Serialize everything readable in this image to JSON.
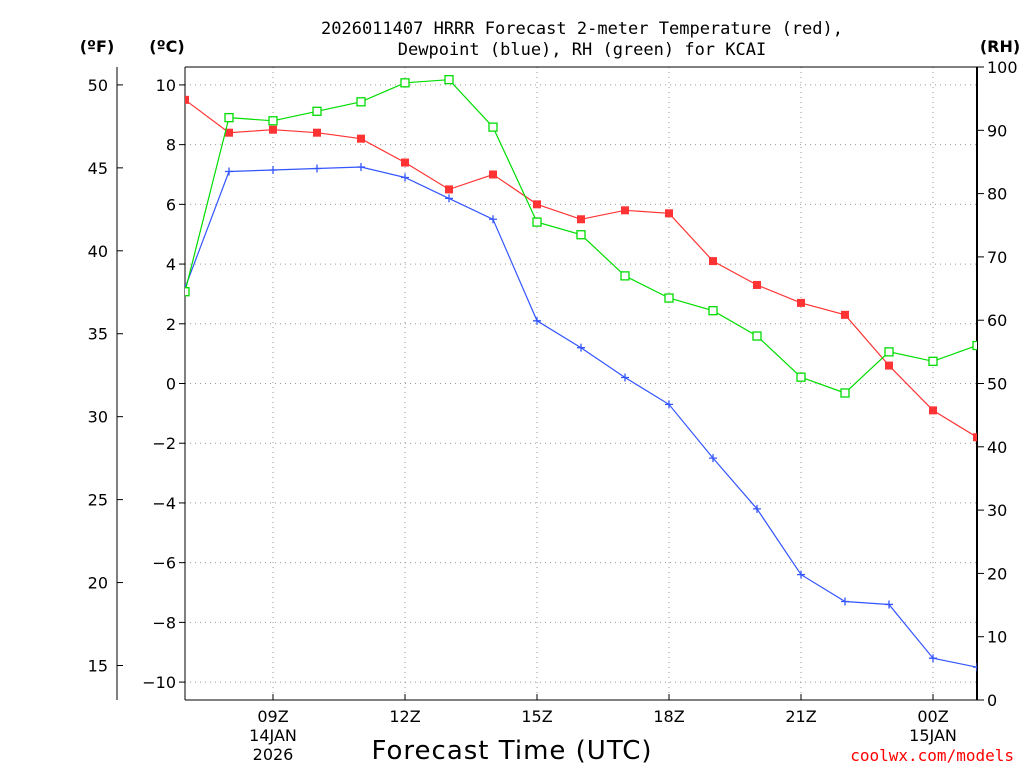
{
  "chart_data": {
    "type": "line",
    "title_lines": [
      "2026011407 HRRR Forecast 2-meter Temperature (red),",
      "Dewpoint (blue), RH (green) for KCAI"
    ],
    "xlabel": "Forecast Time (UTC)",
    "credit": "coolwx.com/models",
    "units": {
      "fahrenheit": "(ºF)",
      "celsius": "(ºC)",
      "rh": "(RH)"
    },
    "x_range": [
      7,
      25
    ],
    "celsius_range": [
      -10.6,
      10.6
    ],
    "fahrenheit_range": [
      12.92,
      51.08
    ],
    "rh_range": [
      0,
      100
    ],
    "x_ticks": [
      {
        "x": 9,
        "label": "09Z",
        "sub1": "14JAN",
        "sub2": "2026"
      },
      {
        "x": 12,
        "label": "12Z",
        "sub1": "",
        "sub2": ""
      },
      {
        "x": 15,
        "label": "15Z",
        "sub1": "",
        "sub2": ""
      },
      {
        "x": 18,
        "label": "18Z",
        "sub1": "",
        "sub2": ""
      },
      {
        "x": 21,
        "label": "21Z",
        "sub1": "",
        "sub2": ""
      },
      {
        "x": 24,
        "label": "00Z",
        "sub1": "15JAN",
        "sub2": ""
      }
    ],
    "celsius_ticks": [
      {
        "value": 10,
        "label": "10"
      },
      {
        "value": 8,
        "label": "8"
      },
      {
        "value": 6,
        "label": "6"
      },
      {
        "value": 4,
        "label": "4"
      },
      {
        "value": 2,
        "label": "2"
      },
      {
        "value": 0,
        "label": "0"
      },
      {
        "value": -2,
        "label": "−2"
      },
      {
        "value": -4,
        "label": "−4"
      },
      {
        "value": -6,
        "label": "−6"
      },
      {
        "value": -8,
        "label": "−8"
      },
      {
        "value": -10,
        "label": "−10"
      }
    ],
    "fahrenheit_ticks": [
      {
        "value": 50,
        "label": "50"
      },
      {
        "value": 45,
        "label": "45"
      },
      {
        "value": 40,
        "label": "40"
      },
      {
        "value": 35,
        "label": "35"
      },
      {
        "value": 30,
        "label": "30"
      },
      {
        "value": 25,
        "label": "25"
      },
      {
        "value": 20,
        "label": "20"
      },
      {
        "value": 15,
        "label": "15"
      }
    ],
    "rh_ticks": [
      {
        "value": 100,
        "label": "100"
      },
      {
        "value": 90,
        "label": "90"
      },
      {
        "value": 80,
        "label": "80"
      },
      {
        "value": 70,
        "label": "70"
      },
      {
        "value": 60,
        "label": "60"
      },
      {
        "value": 50,
        "label": "50"
      },
      {
        "value": 40,
        "label": "40"
      },
      {
        "value": 30,
        "label": "30"
      },
      {
        "value": 20,
        "label": "20"
      },
      {
        "value": 10,
        "label": "10"
      },
      {
        "value": 0,
        "label": "0"
      }
    ],
    "x": [
      7,
      8,
      9,
      10,
      11,
      12,
      13,
      14,
      15,
      16,
      17,
      18,
      19,
      20,
      21,
      22,
      23,
      24,
      25
    ],
    "series": [
      {
        "name": "Temperature (°C)",
        "axis": "celsius",
        "color": "#ff3333",
        "marker": "filled-square",
        "values": [
          9.5,
          8.4,
          8.5,
          8.4,
          8.2,
          7.4,
          6.5,
          7.0,
          6.0,
          5.5,
          5.8,
          5.7,
          4.1,
          3.3,
          2.7,
          2.3,
          0.6,
          -0.9,
          -1.8
        ]
      },
      {
        "name": "Dewpoint (°C)",
        "axis": "celsius",
        "color": "#3355ff",
        "marker": "plus",
        "values": [
          3.2,
          7.1,
          7.15,
          7.2,
          7.25,
          6.9,
          6.2,
          5.5,
          2.1,
          1.2,
          0.2,
          -0.7,
          -2.5,
          -4.2,
          -6.4,
          -7.3,
          -7.4,
          -9.2,
          -9.5
        ]
      },
      {
        "name": "RH (%)",
        "axis": "rh",
        "color": "#00dd00",
        "marker": "open-square",
        "values": [
          64.5,
          92,
          91.5,
          93,
          94.5,
          97.5,
          98,
          90.5,
          75.5,
          73.5,
          67,
          63.5,
          61.5,
          57.5,
          51,
          48.5,
          55,
          53.5,
          56
        ]
      }
    ]
  }
}
